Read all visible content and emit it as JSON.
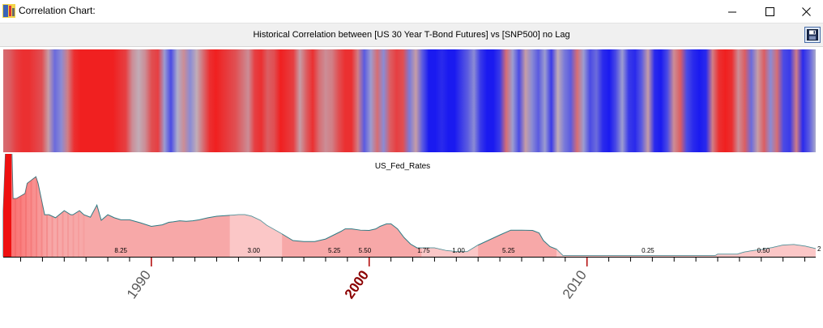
{
  "window": {
    "title": "Correlation Chart:",
    "icon": "app-icon",
    "controls": [
      "minimize-icon",
      "maximize-icon",
      "close-icon"
    ]
  },
  "toolbar": {
    "save_icon": "save-icon"
  },
  "colors": {
    "positive": "#f02020",
    "neutral": "#bcbcc8",
    "negative": "#1a1af0",
    "area_fill": "#f7a8a8",
    "area_line": "#2f7b84",
    "decade_tick": "#b00000",
    "highlight_label": "#8b0000"
  },
  "chart_data": [
    {
      "type": "heatmap",
      "title": "Historical Correlation between [US 30 Year T-Bond Futures] vs [SNP500] no Lag",
      "x_range": [
        1983.2,
        2020.5
      ],
      "color_scale": {
        "min": -1,
        "max": 1,
        "low_color": "#1a1af0",
        "mid_color": "#bcbcc8",
        "high_color": "#f02020"
      },
      "values": [
        0.5,
        0.6,
        0.8,
        0.9,
        0.9,
        0.8,
        0.7,
        0.2,
        -0.5,
        -0.3,
        0.4,
        0.9,
        1.0,
        1.0,
        1.0,
        1.0,
        1.0,
        1.0,
        0.9,
        0.8,
        0.3,
        0.1,
        0.3,
        0.7,
        0.8,
        -0.2,
        -0.7,
        -0.1,
        0.3,
        -0.3,
        0.1,
        0.5,
        0.9,
        1.0,
        0.9,
        0.8,
        0.7,
        0.5,
        0.3,
        0.8,
        0.9,
        0.6,
        0.7,
        1.0,
        0.9,
        0.8,
        0.2,
        0.6,
        0.9,
        0.5,
        0.3,
        0.4,
        0.7,
        0.9,
        0.9,
        0.4,
        -0.6,
        -0.2,
        0.5,
        -0.3,
        0.6,
        0.8,
        0.7,
        -0.4,
        0.2,
        -0.6,
        -1.0,
        -1.0,
        -0.9,
        -1.0,
        -1.0,
        -0.8,
        -0.6,
        -0.3,
        -0.8,
        -1.0,
        -1.0,
        -0.8,
        0.5,
        -0.2,
        -0.7,
        0.2,
        -0.3,
        -0.6,
        -0.2,
        -0.8,
        0.1,
        -0.4,
        -0.6,
        0.5,
        -0.2,
        -0.7,
        -0.5,
        -0.9,
        -1.0,
        -0.7,
        -0.2,
        -0.8,
        -0.9,
        -0.6,
        0.2,
        -0.9,
        -1.0,
        -0.7,
        0.3,
        0.6,
        -0.7,
        -0.9,
        -1.0,
        -0.9,
        0.4,
        0.9,
        1.0,
        0.9,
        0.3,
        0.6,
        -0.5,
        0.2,
        0.6,
        -0.3,
        0.5,
        -0.7,
        -0.8,
        0.4,
        -0.9,
        -0.6,
        -0.1
      ]
    },
    {
      "type": "area",
      "title": "US_Fed_Rates",
      "x_range": [
        1983.2,
        2020.5
      ],
      "xticks": [
        1990,
        2000,
        2010
      ],
      "xtick_labels": [
        "1990",
        "2000",
        "2010"
      ],
      "highlight_tick": 2000,
      "y_range": [
        0,
        20
      ],
      "last_value_label": "2",
      "series": [
        {
          "x": [
            1983.2,
            1983.3,
            1983.6,
            1983.65,
            1983.8,
            1984.2,
            1984.3,
            1984.7,
            1984.8,
            1985.1,
            1985.3,
            1985.6,
            1986.0,
            1986.3,
            1986.4,
            1986.7,
            1986.9,
            1987.2,
            1987.5,
            1987.7,
            1988.0,
            1988.3,
            1988.6,
            1989.0,
            1989.5,
            1990.0,
            1990.5,
            1990.8,
            1991.0,
            1991.3,
            1991.6,
            1991.9,
            1992.2,
            1992.6,
            1993.0,
            1994.0,
            1994.3,
            1994.6,
            1995.0,
            1995.3,
            1996.0,
            1996.5,
            1997.0,
            1997.5,
            1998.0,
            1998.7,
            1998.9,
            1999.2,
            1999.6,
            2000.0,
            2000.3,
            2000.5,
            2000.8,
            2001.0,
            2001.3,
            2001.6,
            2001.9,
            2002.2,
            2003.0,
            2003.5,
            2004.0,
            2004.5,
            2005.0,
            2005.5,
            2006.0,
            2006.5,
            2007.0,
            2007.5,
            2007.8,
            2008.0,
            2008.3,
            2008.6,
            2008.9,
            2009.0,
            2010.0,
            2012.0,
            2014.0,
            2015.9,
            2016.0,
            2016.9,
            2017.2,
            2017.6,
            2018.0,
            2018.5,
            2019.0,
            2019.5,
            2020.0,
            2020.5
          ],
          "values": [
            9.0,
            20.5,
            20.5,
            11.5,
            11.5,
            12.5,
            14.5,
            15.8,
            14.5,
            8.3,
            8.3,
            7.7,
            9.1,
            8.3,
            8.3,
            9.1,
            8.3,
            7.8,
            10.2,
            7.2,
            8.3,
            7.7,
            7.3,
            7.3,
            6.7,
            6.0,
            6.3,
            6.8,
            6.9,
            7.1,
            7.0,
            7.1,
            7.3,
            7.7,
            8.0,
            8.3,
            8.3,
            8.0,
            7.2,
            6.2,
            4.5,
            3.2,
            3.0,
            3.0,
            3.5,
            5.0,
            5.5,
            5.5,
            5.25,
            5.2,
            5.5,
            6.0,
            6.5,
            6.5,
            5.5,
            3.8,
            2.5,
            1.75,
            1.75,
            1.25,
            1.0,
            1.0,
            2.3,
            3.3,
            4.3,
            5.25,
            5.25,
            5.2,
            4.7,
            3.2,
            2.0,
            1.5,
            0.2,
            0.25,
            0.25,
            0.25,
            0.25,
            0.25,
            0.5,
            0.5,
            0.9,
            1.2,
            1.4,
            1.8,
            2.3,
            2.4,
            2.1,
            1.6
          ]
        }
      ],
      "annotations": [
        {
          "x": 1988.6,
          "text": "8.25"
        },
        {
          "x": 1994.7,
          "text": "3.00"
        },
        {
          "x": 1998.4,
          "text": "5.25"
        },
        {
          "x": 1999.8,
          "text": "5.50"
        },
        {
          "x": 2002.5,
          "text": "1.75"
        },
        {
          "x": 2004.1,
          "text": "1.00"
        },
        {
          "x": 2006.4,
          "text": "5.25"
        },
        {
          "x": 2012.8,
          "text": "0.25"
        },
        {
          "x": 2018.1,
          "text": "0.50"
        }
      ]
    }
  ]
}
